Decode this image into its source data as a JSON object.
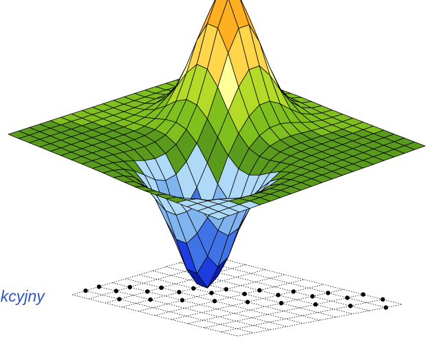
{
  "caption": {
    "text": "ekcyjny"
  },
  "surface": {
    "description_shape": "peaks-like saddle: one tall peak and one deep pit",
    "grid_resolution": 21,
    "colormap": [
      "#0a1ea8",
      "#1d3de0",
      "#3f73e6",
      "#7fb4ef",
      "#aedaf8",
      "#5a9a1c",
      "#7fbf1e",
      "#b4db28",
      "#ffff99",
      "#ffd54a",
      "#ffb020",
      "#ff7a10"
    ],
    "edge_color": "#000000"
  },
  "base_grid": {
    "lines": 11,
    "dot_color": "#000000"
  }
}
